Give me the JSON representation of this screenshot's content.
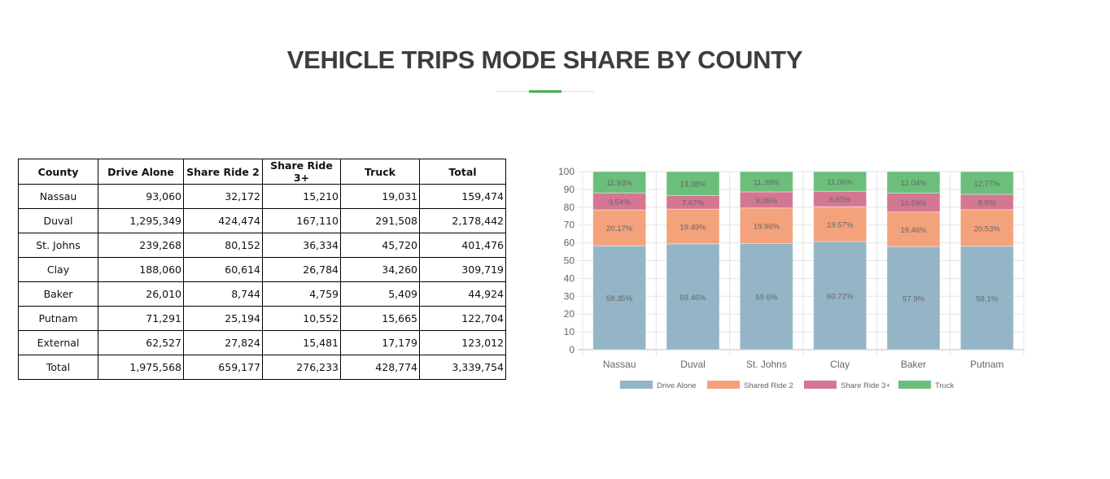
{
  "title": "VEHICLE TRIPS MODE SHARE BY COUNTY",
  "table": {
    "headers": [
      "County",
      "Drive Alone",
      "Share Ride 2",
      "Share Ride 3+",
      "Truck",
      "Total"
    ],
    "rows": [
      [
        "Nassau",
        "93,060",
        "32,172",
        "15,210",
        "19,031",
        "159,474"
      ],
      [
        "Duval",
        "1,295,349",
        "424,474",
        "167,110",
        "291,508",
        "2,178,442"
      ],
      [
        "St. Johns",
        "239,268",
        "80,152",
        "36,334",
        "45,720",
        "401,476"
      ],
      [
        "Clay",
        "188,060",
        "60,614",
        "26,784",
        "34,260",
        "309,719"
      ],
      [
        "Baker",
        "26,010",
        "8,744",
        "4,759",
        "5,409",
        "44,924"
      ],
      [
        "Putnam",
        "71,291",
        "25,194",
        "10,552",
        "15,665",
        "122,704"
      ],
      [
        "External",
        "62,527",
        "27,824",
        "15,481",
        "17,179",
        "123,012"
      ],
      [
        "Total",
        "1,975,568",
        "659,177",
        "276,233",
        "428,774",
        "3,339,754"
      ]
    ]
  },
  "chart_data": {
    "type": "bar",
    "stacked": true,
    "categories": [
      "Nassau",
      "Duval",
      "St. Johns",
      "Clay",
      "Baker",
      "Putnam"
    ],
    "series": [
      {
        "name": "Drive Alone",
        "color": "#93b5c6",
        "values": [
          58.35,
          59.46,
          59.6,
          60.72,
          57.9,
          58.1
        ],
        "labels": [
          "58.35%",
          "59.46%",
          "59.6%",
          "60.72%",
          "57.9%",
          "58.1%"
        ]
      },
      {
        "name": "Shared Ride 2",
        "color": "#f3a27b",
        "values": [
          20.17,
          19.49,
          19.96,
          19.57,
          19.46,
          20.53
        ],
        "labels": [
          "20.17%",
          "19.49%",
          "19.96%",
          "19.57%",
          "19.46%",
          "20.53%"
        ]
      },
      {
        "name": "Share Ride 3+",
        "color": "#d47792",
        "values": [
          9.54,
          7.67,
          9.05,
          8.65,
          10.59,
          8.6
        ],
        "labels": [
          "9.54%",
          "7.67%",
          "9.05%",
          "8.65%",
          "10.59%",
          "8.6%"
        ]
      },
      {
        "name": "Truck",
        "color": "#6bbf7b",
        "values": [
          11.93,
          13.38,
          11.39,
          11.06,
          12.04,
          12.77
        ],
        "labels": [
          "11.93%",
          "13.38%",
          "11.39%",
          "11.06%",
          "12.04%",
          "12.77%"
        ]
      }
    ],
    "ylim": [
      0,
      100
    ],
    "yticks": [
      "0",
      "10",
      "20",
      "30",
      "40",
      "50",
      "60",
      "70",
      "80",
      "90",
      "100"
    ],
    "legend": "bottom",
    "grid": true
  }
}
